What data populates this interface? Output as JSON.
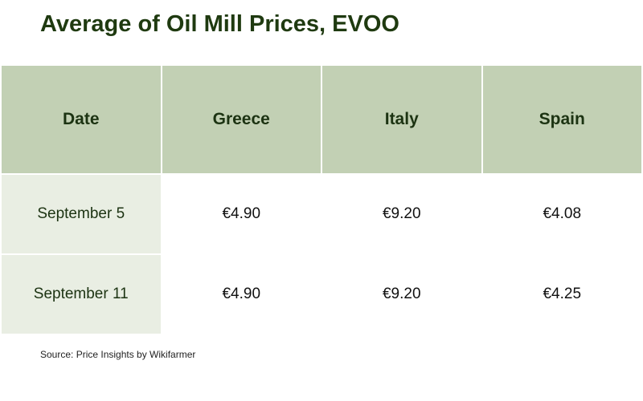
{
  "header": {
    "title": "Average of Oil Mill Prices, EVOO"
  },
  "table": {
    "columns": [
      "Date",
      "Greece",
      "Italy",
      "Spain"
    ],
    "rows": [
      [
        "September 5",
        "€4.90",
        "€9.20",
        "€4.08"
      ],
      [
        "September 11",
        "€4.90",
        "€9.20",
        "€4.25"
      ]
    ]
  },
  "footer": {
    "source": "Source: Price Insights by Wikifarmer"
  }
}
